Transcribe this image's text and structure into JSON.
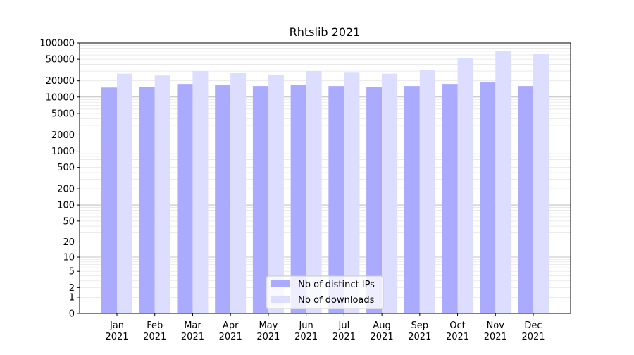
{
  "chart_data": {
    "type": "bar",
    "title": "Rhtslib 2021",
    "xlabel": "",
    "ylabel": "",
    "yscale": "symlog",
    "ylim": [
      0,
      100000
    ],
    "grid": true,
    "legend_position": "bottom-center",
    "categories": [
      {
        "month": "Jan",
        "year": "2021"
      },
      {
        "month": "Feb",
        "year": "2021"
      },
      {
        "month": "Mar",
        "year": "2021"
      },
      {
        "month": "Apr",
        "year": "2021"
      },
      {
        "month": "May",
        "year": "2021"
      },
      {
        "month": "Jun",
        "year": "2021"
      },
      {
        "month": "Jul",
        "year": "2021"
      },
      {
        "month": "Aug",
        "year": "2021"
      },
      {
        "month": "Sep",
        "year": "2021"
      },
      {
        "month": "Oct",
        "year": "2021"
      },
      {
        "month": "Nov",
        "year": "2021"
      },
      {
        "month": "Dec",
        "year": "2021"
      }
    ],
    "yticks": [
      "0",
      "1",
      "2",
      "5",
      "10",
      "20",
      "50",
      "100",
      "200",
      "500",
      "1000",
      "2000",
      "5000",
      "10000",
      "20000",
      "50000",
      "100000"
    ],
    "series": [
      {
        "name": "Nb of distinct IPs",
        "color": "#aaaaff",
        "values": [
          15000,
          15500,
          17500,
          17000,
          16000,
          17000,
          16000,
          15500,
          16000,
          17500,
          19000,
          16000
        ]
      },
      {
        "name": "Nb of downloads",
        "color": "#ddddff",
        "values": [
          27000,
          25000,
          30000,
          28000,
          26000,
          30000,
          29000,
          27000,
          32000,
          53000,
          72000,
          62000
        ]
      }
    ]
  }
}
